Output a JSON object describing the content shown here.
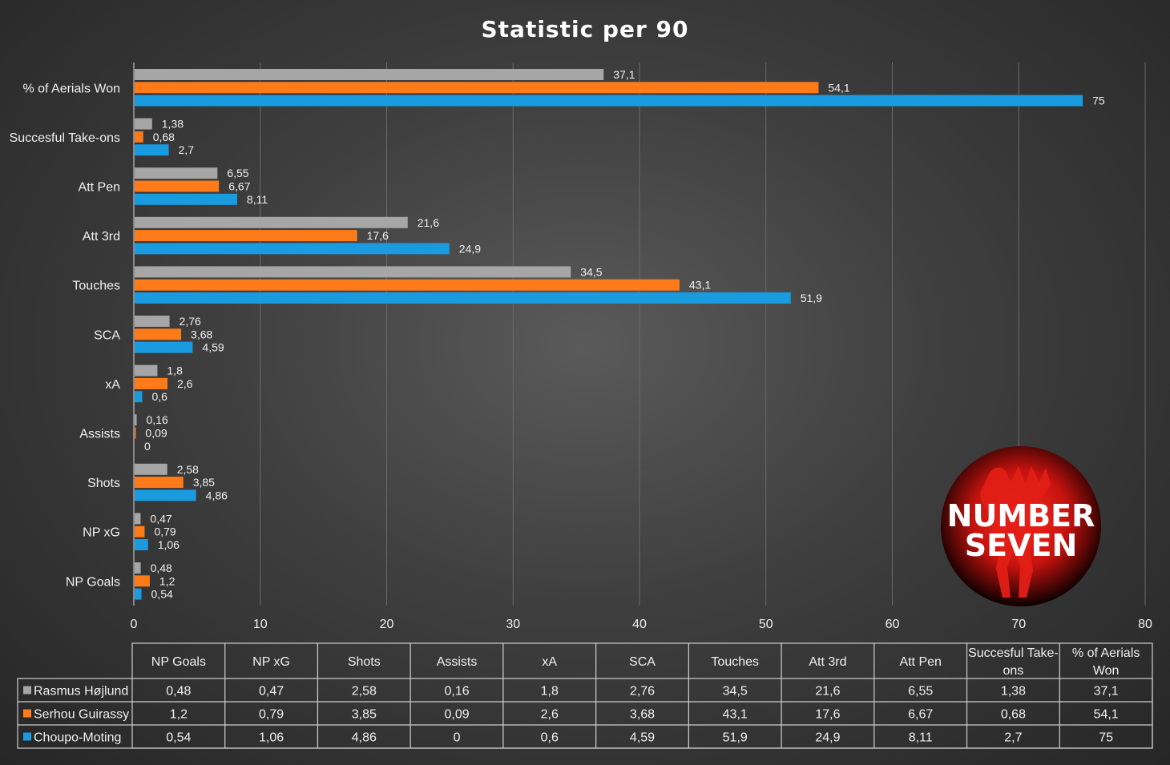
{
  "chart_data": {
    "type": "bar",
    "orientation": "horizontal",
    "title": "Statistic per 90",
    "categories": [
      "NP Goals",
      "NP xG",
      "Shots",
      "Assists",
      "xA",
      "SCA",
      "Touches",
      "Att 3rd",
      "Att Pen",
      "Succesful Take-ons",
      "% of Aerials Won"
    ],
    "table_headers": [
      "NP Goals",
      "NP xG",
      "Shots",
      "Assists",
      "xA",
      "SCA",
      "Touches",
      "Att 3rd",
      "Att Pen",
      "Succesful Take-\nons",
      "% of Aerials\nWon"
    ],
    "series": [
      {
        "name": "Rasmus Højlund",
        "color": "#a6a6a6",
        "values": [
          0.48,
          0.47,
          2.58,
          0.16,
          1.8,
          2.76,
          34.5,
          21.6,
          6.55,
          1.38,
          37.1
        ],
        "labels": [
          "0,48",
          "0,47",
          "2,58",
          "0,16",
          "1,8",
          "2,76",
          "34,5",
          "21,6",
          "6,55",
          "1,38",
          "37,1"
        ]
      },
      {
        "name": "Serhou Guirassy",
        "color": "#ff7a18",
        "values": [
          1.2,
          0.79,
          3.85,
          0.09,
          2.6,
          3.68,
          43.1,
          17.6,
          6.67,
          0.68,
          54.1
        ],
        "labels": [
          "1,2",
          "0,79",
          "3,85",
          "0,09",
          "2,6",
          "3,68",
          "43,1",
          "17,6",
          "6,67",
          "0,68",
          "54,1"
        ]
      },
      {
        "name": "Choupo-Moting",
        "color": "#1a9be0",
        "values": [
          0.54,
          1.06,
          4.86,
          0,
          0.6,
          4.59,
          51.9,
          24.9,
          8.11,
          2.7,
          75
        ],
        "labels": [
          "0,54",
          "1,06",
          "4,86",
          "0",
          "0,6",
          "4,59",
          "51,9",
          "24,9",
          "8,11",
          "2,7",
          "75"
        ]
      }
    ],
    "xlim": [
      0,
      80
    ],
    "xticks": [
      0,
      10,
      20,
      30,
      40,
      50,
      60,
      70,
      80
    ],
    "grid": "vertical",
    "legend": "data table below chart"
  },
  "logo": {
    "line1": "NUMBER",
    "line2": "SEVEN"
  }
}
